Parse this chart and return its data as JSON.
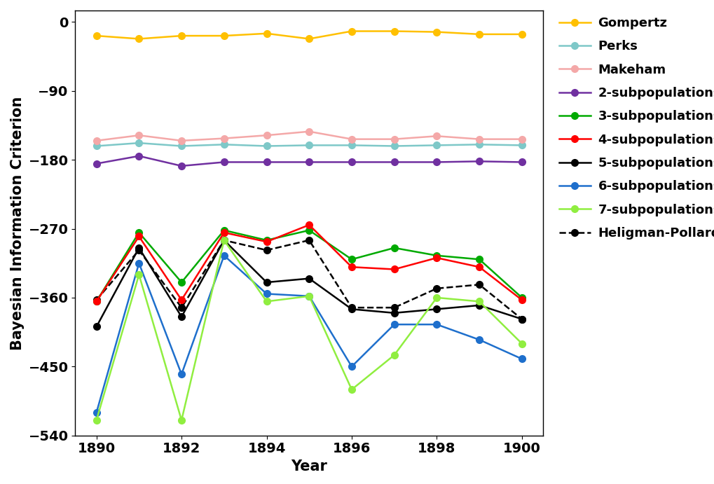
{
  "years": [
    1890,
    1891,
    1892,
    1893,
    1894,
    1895,
    1896,
    1897,
    1898,
    1899,
    1900
  ],
  "gompertz": [
    -18,
    -22,
    -18,
    -18,
    -15,
    -22,
    -12,
    -12,
    -13,
    -16,
    -16
  ],
  "perks": [
    -162,
    -158,
    -162,
    -160,
    -162,
    -161,
    -161,
    -162,
    -161,
    -160,
    -161
  ],
  "makeham": [
    -155,
    -148,
    -155,
    -152,
    -148,
    -143,
    -153,
    -153,
    -149,
    -153,
    -153
  ],
  "subpop2": [
    -185,
    -175,
    -188,
    -183,
    -183,
    -183,
    -183,
    -183,
    -183,
    -182,
    -183
  ],
  "subpop3": [
    -365,
    -275,
    -340,
    -272,
    -285,
    -272,
    -310,
    -295,
    -305,
    -310,
    -360
  ],
  "subpop4": [
    -365,
    -280,
    -363,
    -275,
    -287,
    -265,
    -320,
    -323,
    -308,
    -320,
    -363
  ],
  "subpop5": [
    -398,
    -295,
    -385,
    -285,
    -340,
    -335,
    -375,
    -380,
    -375,
    -370,
    -388
  ],
  "subpop6": [
    -510,
    -315,
    -460,
    -305,
    -355,
    -358,
    -450,
    -395,
    -395,
    -415,
    -440
  ],
  "subpop7": [
    -520,
    -330,
    -520,
    -285,
    -365,
    -358,
    -480,
    -435,
    -360,
    -365,
    -420
  ],
  "heligman": [
    -363,
    -298,
    -373,
    -285,
    -298,
    -285,
    -373,
    -373,
    -348,
    -343,
    -388
  ],
  "colors": {
    "gompertz": "#FFC000",
    "perks": "#7EC8C8",
    "makeham": "#F4A8A8",
    "subpop2": "#7030A0",
    "subpop3": "#00AA00",
    "subpop4": "#FF0000",
    "subpop5": "#000000",
    "subpop6": "#1E6FCC",
    "subpop7": "#90EE40",
    "heligman": "#000000"
  },
  "xlabel": "Year",
  "ylabel": "Bayesian Information Criterion",
  "ylim": [
    -540,
    15
  ],
  "yticks": [
    0,
    -90,
    -180,
    -270,
    -360,
    -450,
    -540
  ],
  "xticks": [
    1890,
    1892,
    1894,
    1896,
    1898,
    1900
  ],
  "label_fontsize": 15,
  "tick_fontsize": 14,
  "legend_fontsize": 13,
  "markersize": 7,
  "linewidth": 1.8
}
